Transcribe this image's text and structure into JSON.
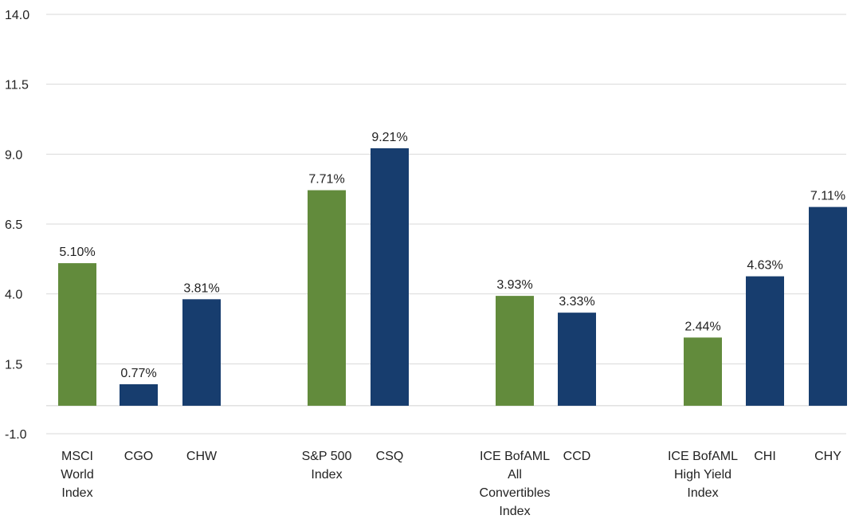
{
  "chart_data": {
    "type": "bar",
    "title": "",
    "xlabel": "",
    "ylabel": "",
    "ylim": [
      -1.0,
      14.0
    ],
    "yticks": [
      "14.0",
      "11.5",
      "9.0",
      "6.5",
      "4.0",
      "1.5",
      "-1.0"
    ],
    "grid": true,
    "legend": "none",
    "colors": {
      "index": "#628b3c",
      "fund": "#173d6e"
    },
    "bars": [
      {
        "category": [
          "MSCI",
          "World",
          "Index"
        ],
        "value": 5.1,
        "label": "5.10%",
        "kind": "index"
      },
      {
        "category": [
          "CGO"
        ],
        "value": 0.77,
        "label": "0.77%",
        "kind": "fund"
      },
      {
        "category": [
          "CHW"
        ],
        "value": 3.81,
        "label": "3.81%",
        "kind": "fund"
      },
      {
        "category": [
          "S&P 500",
          "Index"
        ],
        "value": 7.71,
        "label": "7.71%",
        "kind": "index"
      },
      {
        "category": [
          "CSQ"
        ],
        "value": 9.21,
        "label": "9.21%",
        "kind": "fund"
      },
      {
        "category": [
          "ICE BofAML",
          "All",
          "Convertibles",
          "Index"
        ],
        "value": 3.93,
        "label": "3.93%",
        "kind": "index"
      },
      {
        "category": [
          "CCD"
        ],
        "value": 3.33,
        "label": "3.33%",
        "kind": "fund"
      },
      {
        "category": [
          "ICE BofAML",
          "High Yield",
          "Index"
        ],
        "value": 2.44,
        "label": "2.44%",
        "kind": "index"
      },
      {
        "category": [
          "CHI"
        ],
        "value": 4.63,
        "label": "4.63%",
        "kind": "fund"
      },
      {
        "category": [
          "CHY"
        ],
        "value": 7.11,
        "label": "7.11%",
        "kind": "fund"
      }
    ]
  }
}
